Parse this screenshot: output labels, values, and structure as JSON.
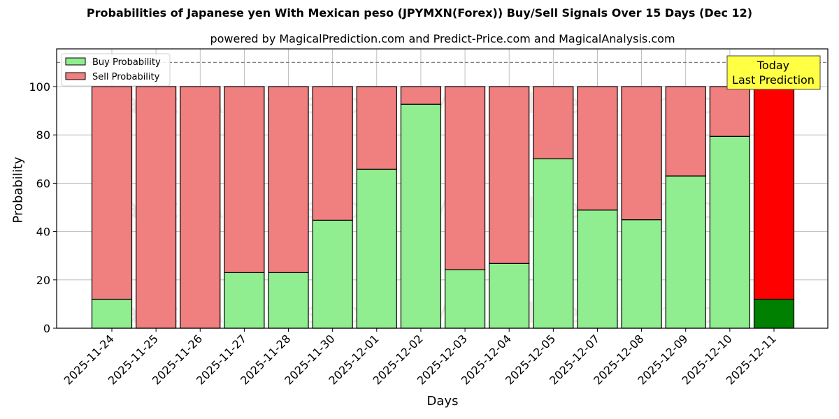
{
  "chart_data": {
    "type": "bar",
    "stacked": true,
    "title": "Probabilities of Japanese yen With Mexican peso (JPYMXN(Forex)) Buy/Sell Signals Over 15 Days (Dec 12)",
    "subtitle": "powered by MagicalPrediction.com and Predict-Price.com and MagicalAnalysis.com",
    "xlabel": "Days",
    "ylabel": "Probability",
    "ylim": [
      0,
      115.6
    ],
    "yticks": [
      0,
      20,
      40,
      60,
      80,
      100
    ],
    "grid": true,
    "legend_position": "upper left",
    "reference_line": {
      "y": 110,
      "style": "dashed",
      "color": "#808080"
    },
    "categories": [
      "2025-11-24",
      "2025-11-25",
      "2025-11-26",
      "2025-11-27",
      "2025-11-28",
      "2025-11-30",
      "2025-12-01",
      "2025-12-02",
      "2025-12-03",
      "2025-12-04",
      "2025-12-05",
      "2025-12-07",
      "2025-12-08",
      "2025-12-09",
      "2025-12-10",
      "2025-12-11"
    ],
    "series": [
      {
        "name": "Buy Probability",
        "color": "#90EE90",
        "values": [
          12.0,
          0,
          0,
          23.0,
          23.0,
          44.7,
          65.8,
          92.7,
          24.2,
          26.8,
          70.1,
          48.9,
          44.9,
          63.0,
          79.4,
          12.0
        ]
      },
      {
        "name": "Sell Probability",
        "color": "#F08080",
        "values": [
          88.0,
          100,
          100,
          77.0,
          77.0,
          55.3,
          34.2,
          7.3,
          75.8,
          73.2,
          29.9,
          51.1,
          55.1,
          37.0,
          20.6,
          88.0
        ]
      }
    ],
    "highlight": {
      "index": 15,
      "buy_color": "#008000",
      "sell_color": "#FF0000"
    },
    "annotation": {
      "text_line1": "Today",
      "text_line2": "Last Prediction",
      "background": "#FFFF44"
    },
    "watermarks": [
      "MagicalAnalysis.com",
      "MagicalPrediction.com"
    ]
  }
}
